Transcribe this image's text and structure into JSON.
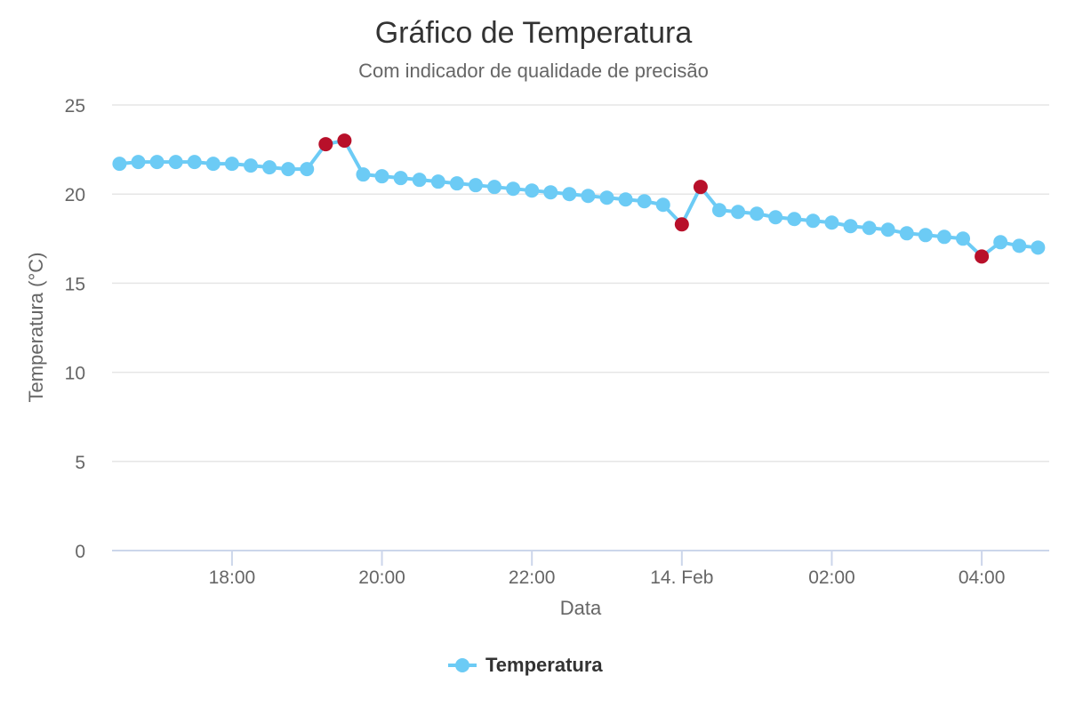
{
  "chart_data": {
    "type": "line",
    "title": "Gráfico de Temperatura",
    "subtitle": "Com indicador de qualidade de precisão",
    "xlabel": "Data",
    "ylabel": "Temperatura (°C)",
    "ylim": [
      0,
      25
    ],
    "yticks": [
      0,
      5,
      10,
      15,
      20,
      25
    ],
    "xticks": [
      {
        "label": "18:00",
        "t": 18.0
      },
      {
        "label": "20:00",
        "t": 20.0
      },
      {
        "label": "22:00",
        "t": 22.0
      },
      {
        "label": "14. Feb",
        "t": 24.0
      },
      {
        "label": "02:00",
        "t": 26.0
      },
      {
        "label": "04:00",
        "t": 28.0
      }
    ],
    "xlim": [
      16.4,
      28.9
    ],
    "grid": true,
    "legend_position": "bottom-center",
    "colors": {
      "line": "#6ccbf5",
      "point": "#6ccbf5",
      "flagged": "#b8102a",
      "grid": "#e6e6e6",
      "axis": "#ccd6eb"
    },
    "series": [
      {
        "name": "Temperatura",
        "x": [
          16.5,
          16.75,
          17.0,
          17.25,
          17.5,
          17.75,
          18.0,
          18.25,
          18.5,
          18.75,
          19.0,
          19.25,
          19.5,
          19.75,
          20.0,
          20.25,
          20.5,
          20.75,
          21.0,
          21.25,
          21.5,
          21.75,
          22.0,
          22.25,
          22.5,
          22.75,
          23.0,
          23.25,
          23.5,
          23.75,
          24.0,
          24.25,
          24.5,
          24.75,
          25.0,
          25.25,
          25.5,
          25.75,
          26.0,
          26.25,
          26.5,
          26.75,
          27.0,
          27.25,
          27.5,
          27.75,
          28.0,
          28.25,
          28.5,
          28.75
        ],
        "values": [
          21.7,
          21.8,
          21.8,
          21.8,
          21.8,
          21.7,
          21.7,
          21.6,
          21.5,
          21.4,
          21.4,
          22.8,
          23.0,
          21.1,
          21.0,
          20.9,
          20.8,
          20.7,
          20.6,
          20.5,
          20.4,
          20.3,
          20.2,
          20.1,
          20.0,
          19.9,
          19.8,
          19.7,
          19.6,
          19.4,
          18.3,
          20.4,
          19.1,
          19.0,
          18.9,
          18.7,
          18.6,
          18.5,
          18.4,
          18.2,
          18.1,
          18.0,
          17.8,
          17.7,
          17.6,
          17.5,
          16.5,
          17.3,
          17.1,
          17.0
        ],
        "flagged": [
          false,
          false,
          false,
          false,
          false,
          false,
          false,
          false,
          false,
          false,
          false,
          true,
          true,
          false,
          false,
          false,
          false,
          false,
          false,
          false,
          false,
          false,
          false,
          false,
          false,
          false,
          false,
          false,
          false,
          false,
          true,
          true,
          false,
          false,
          false,
          false,
          false,
          false,
          false,
          false,
          false,
          false,
          false,
          false,
          false,
          false,
          true,
          false,
          false,
          false
        ]
      }
    ]
  }
}
